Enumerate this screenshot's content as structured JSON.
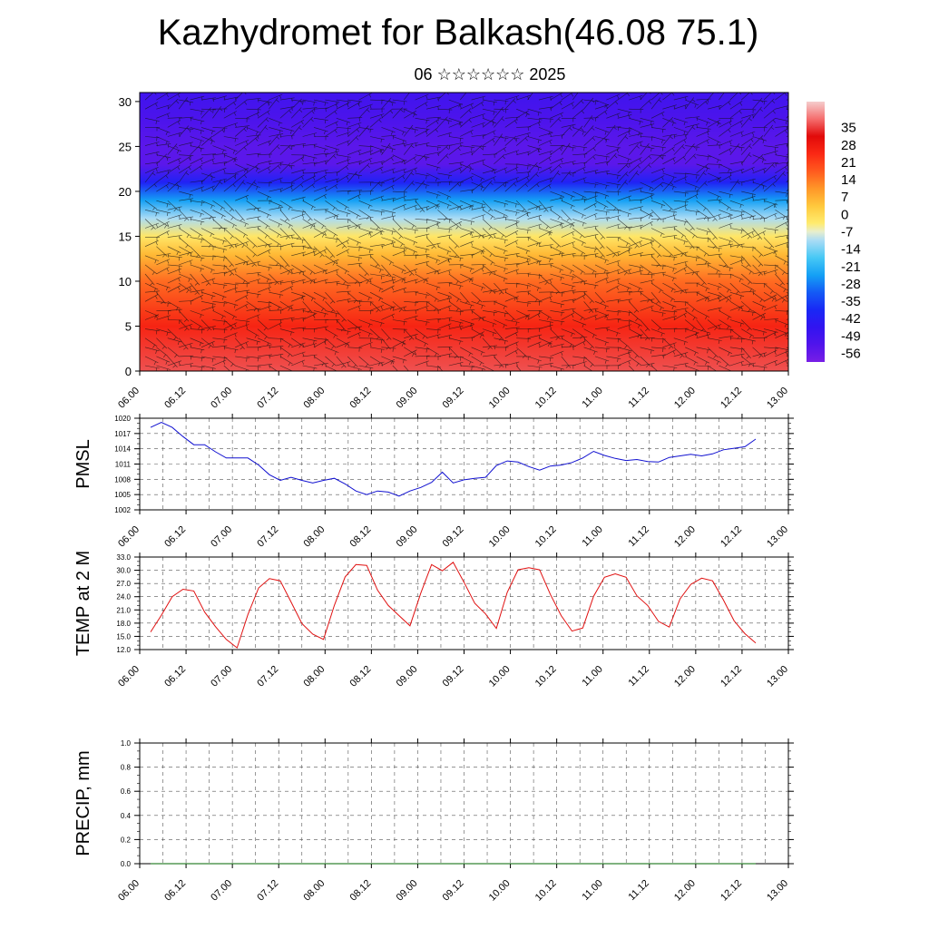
{
  "title": "Kazhydromet for Balkash(46.08 75.1)",
  "subtitle": "06 ☆☆☆☆☆☆ 2025",
  "colors": {
    "pmsl_line": "#1010d0",
    "temp_line": "#e01010",
    "precip_line": "#006400",
    "grid": "#555555"
  },
  "chart_data": [
    {
      "type": "heatmap",
      "panel": "cross-section",
      "title": "",
      "ylim": [
        0,
        31
      ],
      "y_ticks": [
        "0",
        "5",
        "10",
        "15",
        "20",
        "25",
        "30"
      ],
      "x_ticks": [
        "06.00",
        "06.12",
        "07.00",
        "07.12",
        "08.00",
        "08.12",
        "09.00",
        "09.12",
        "10.00",
        "10.12",
        "11.00",
        "11.12",
        "12.00",
        "12.12",
        "13.00"
      ],
      "colorbar_labels": [
        "35",
        "28",
        "21",
        "14",
        "7",
        "0",
        "-7",
        "-14",
        "-21",
        "-28",
        "-35",
        "-42",
        "-49",
        "-56"
      ],
      "colorbar_range": [
        -63,
        42
      ],
      "overlay": "wind barbs",
      "levels": [
        0,
        5,
        10,
        13,
        15,
        17,
        19,
        21,
        23,
        25,
        28,
        31
      ],
      "temperature_profile": [
        33,
        22,
        12,
        2,
        -6,
        -14,
        -28,
        -44,
        -58,
        -58,
        -55,
        -52
      ],
      "layout": {
        "tick_w": 5.3
      }
    },
    {
      "type": "line",
      "panel": "pmsl",
      "ylabel": "PMSL",
      "ylim": [
        1002,
        1020
      ],
      "y_ticks": [
        "1002",
        "1005",
        "1008",
        "1011",
        "1014",
        "1017",
        "1020"
      ],
      "x_ticks": [
        "06.00",
        "06.12",
        "07.00",
        "07.12",
        "08.00",
        "08.12",
        "09.00",
        "09.12",
        "10.00",
        "10.12",
        "11.00",
        "11.12",
        "12.00",
        "12.12",
        "13.00"
      ],
      "series": [
        {
          "values": [
            1018.2,
            1019.2,
            1018.2,
            1016.4,
            1014.8,
            1014.8,
            1013.4,
            1012.2,
            1012.2,
            1012.2,
            1010.8,
            1008.9,
            1007.8,
            1008.4,
            1007.8,
            1007.3,
            1007.8,
            1008.2,
            1007.1,
            1005.7,
            1005.0,
            1005.7,
            1005.5,
            1004.7,
            1005.7,
            1006.4,
            1007.4,
            1009.4,
            1007.3,
            1007.9,
            1008.2,
            1008.4,
            1010.7,
            1011.6,
            1011.4,
            1010.5,
            1009.8,
            1010.6,
            1010.8,
            1011.3,
            1012.2,
            1013.5,
            1012.7,
            1012.1,
            1011.7,
            1011.9,
            1011.5,
            1011.4,
            1012.3,
            1012.6,
            1012.9,
            1012.6,
            1013.0,
            1013.8,
            1014.1,
            1014.4,
            1015.9
          ]
        }
      ]
    },
    {
      "type": "line",
      "panel": "temp",
      "ylabel": "TEMP at 2 M",
      "ylim": [
        12,
        33
      ],
      "y_ticks": [
        "12.0",
        "15.0",
        "18.0",
        "21.0",
        "24.0",
        "27.0",
        "30.0",
        "33.0"
      ],
      "x_ticks": [
        "06.00",
        "06.12",
        "07.00",
        "07.12",
        "08.00",
        "08.12",
        "09.00",
        "09.12",
        "10.00",
        "10.12",
        "11.00",
        "11.12",
        "12.00",
        "12.12",
        "13.00"
      ],
      "series": [
        {
          "values": [
            16.0,
            19.8,
            24.0,
            25.7,
            25.3,
            20.5,
            17.2,
            14.3,
            12.4,
            19.9,
            26.0,
            28.1,
            27.6,
            22.8,
            17.9,
            15.5,
            14.3,
            22.0,
            28.5,
            31.3,
            31.1,
            25.5,
            22.0,
            19.7,
            17.4,
            24.8,
            31.3,
            29.9,
            31.8,
            27.3,
            22.5,
            20.1,
            16.8,
            25.0,
            30.1,
            30.6,
            30.1,
            24.5,
            19.7,
            16.2,
            16.9,
            24.1,
            28.4,
            29.2,
            28.4,
            24.2,
            22.0,
            18.4,
            17.1,
            23.5,
            26.8,
            28.2,
            27.6,
            23.3,
            18.5,
            15.6,
            13.5
          ]
        }
      ]
    },
    {
      "type": "line",
      "panel": "precip",
      "ylabel": "PRECIP, mm",
      "ylim": [
        0,
        1
      ],
      "y_ticks": [
        "0.0",
        "0.2",
        "0.4",
        "0.6",
        "0.8",
        "1.0"
      ],
      "x_ticks": [
        "06.00",
        "06.12",
        "07.00",
        "07.12",
        "08.00",
        "08.12",
        "09.00",
        "09.12",
        "10.00",
        "10.12",
        "11.00",
        "11.12",
        "12.00",
        "12.12",
        "13.00"
      ],
      "series": [
        {
          "values": [
            0,
            0,
            0,
            0,
            0,
            0,
            0,
            0,
            0,
            0,
            0,
            0,
            0,
            0,
            0,
            0,
            0,
            0,
            0,
            0,
            0,
            0,
            0,
            0,
            0,
            0,
            0,
            0,
            0,
            0,
            0,
            0,
            0,
            0,
            0,
            0,
            0,
            0,
            0,
            0,
            0,
            0,
            0,
            0,
            0,
            0,
            0,
            0,
            0,
            0,
            0,
            0,
            0,
            0,
            0,
            0,
            0
          ]
        }
      ]
    }
  ]
}
